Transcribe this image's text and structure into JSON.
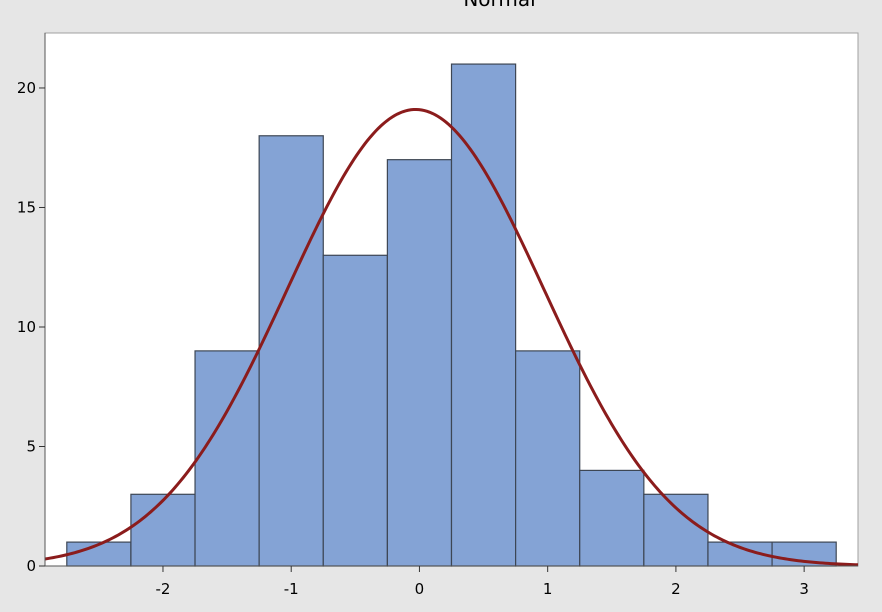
{
  "chart_data": {
    "type": "bar",
    "title": "Normal",
    "xlabel": "",
    "ylabel": "",
    "bins": [
      {
        "x0": -2.75,
        "x1": -2.25,
        "count": 1
      },
      {
        "x0": -2.25,
        "x1": -1.75,
        "count": 3
      },
      {
        "x0": -1.75,
        "x1": -1.25,
        "count": 9
      },
      {
        "x0": -1.25,
        "x1": -0.75,
        "count": 18
      },
      {
        "x0": -0.75,
        "x1": -0.25,
        "count": 13
      },
      {
        "x0": -0.25,
        "x1": 0.25,
        "count": 17
      },
      {
        "x0": 0.25,
        "x1": 0.75,
        "count": 21
      },
      {
        "x0": 0.75,
        "x1": 1.25,
        "count": 9
      },
      {
        "x0": 1.25,
        "x1": 1.75,
        "count": 4
      },
      {
        "x0": 1.75,
        "x1": 2.25,
        "count": 3
      },
      {
        "x0": 2.25,
        "x1": 2.75,
        "count": 1
      },
      {
        "x0": 2.75,
        "x1": 3.25,
        "count": 1
      }
    ],
    "fit_curve": {
      "distribution": "normal",
      "mean": -0.03,
      "stdev": 1.0,
      "peak": 19.1
    },
    "xticks": [
      -2,
      -1,
      0,
      1,
      2,
      3
    ],
    "xtick_labels": [
      "-2",
      "-1",
      "0",
      "1",
      "2",
      "3"
    ],
    "yticks": [
      0,
      5,
      10,
      15,
      20
    ],
    "ytick_labels": [
      "0",
      "5",
      "10",
      "15",
      "20"
    ],
    "xlim": [
      -2.92,
      3.42
    ],
    "ylim": [
      0,
      22.3
    ],
    "grid": false,
    "colors": {
      "bar_fill": "#84a3d5",
      "curve": "#8b1c1c",
      "background": "#e6e6e6",
      "plot_area": "#ffffff"
    }
  }
}
